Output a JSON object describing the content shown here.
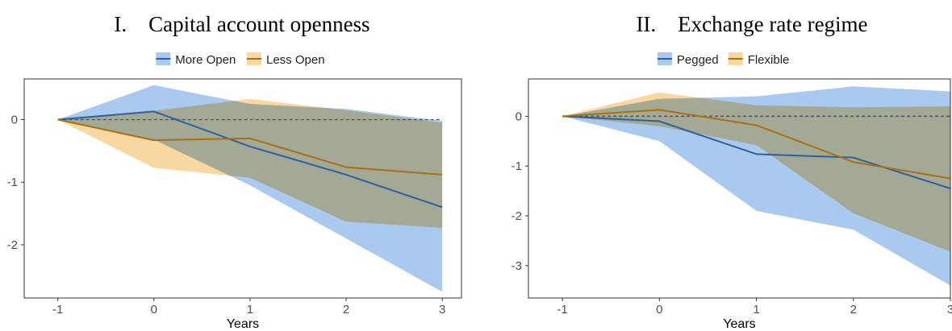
{
  "chart_data": [
    {
      "type": "line",
      "title": "I. Capital account openness",
      "xlabel": "Years",
      "ylabel": "",
      "x": [
        -1,
        0,
        1,
        2,
        3
      ],
      "xlim": [
        -1.35,
        3.2
      ],
      "ylim": [
        -2.85,
        0.65
      ],
      "xticks": [
        "-1",
        "0",
        "1",
        "2",
        "3"
      ],
      "yticks": [
        0,
        -1,
        -2
      ],
      "ytick_labels": [
        "0",
        "-1",
        "-2"
      ],
      "reference_line": 0,
      "grid": false,
      "legend_position": "top-center",
      "series": [
        {
          "name": "More Open",
          "color": "#2e5f9e",
          "band_color": "#a9c9ee",
          "values": [
            0,
            0.13,
            -0.43,
            -0.88,
            -1.4
          ],
          "upper": [
            0,
            0.55,
            0.25,
            0.17,
            -0.02
          ],
          "lower": [
            0,
            -0.32,
            -1.05,
            -1.9,
            -2.75
          ]
        },
        {
          "name": "Less Open",
          "color": "#a86f15",
          "band_color": "#f8d7a0",
          "values": [
            0,
            -0.33,
            -0.3,
            -0.76,
            -0.88
          ],
          "upper": [
            0,
            0.14,
            0.33,
            0.15,
            -0.05
          ],
          "lower": [
            0,
            -0.77,
            -0.93,
            -1.63,
            -1.73
          ]
        }
      ]
    },
    {
      "type": "line",
      "title": "II. Exchange rate regime",
      "xlabel": "Years",
      "ylabel": "",
      "x": [
        -1,
        0,
        1,
        2,
        3
      ],
      "xlim": [
        -1.35,
        3.0
      ],
      "ylim": [
        -3.65,
        0.75
      ],
      "xticks": [
        "-1",
        "0",
        "1",
        "2",
        "3"
      ],
      "yticks": [
        0,
        -1,
        -2,
        -3
      ],
      "ytick_labels": [
        "0",
        "-1",
        "-2",
        "-3"
      ],
      "reference_line": 0,
      "grid": false,
      "legend_position": "top-center",
      "series": [
        {
          "name": "Pegged",
          "color": "#2e5f9e",
          "band_color": "#a9c9ee",
          "values": [
            0,
            -0.1,
            -0.76,
            -0.83,
            -1.45
          ],
          "upper": [
            0,
            0.35,
            0.4,
            0.6,
            0.5
          ],
          "lower": [
            0,
            -0.5,
            -1.9,
            -2.28,
            -3.4
          ]
        },
        {
          "name": "Flexible",
          "color": "#a86f15",
          "band_color": "#f8d7a0",
          "values": [
            0,
            0.13,
            -0.18,
            -0.92,
            -1.25
          ],
          "upper": [
            0,
            0.48,
            0.22,
            0.18,
            0.2
          ],
          "lower": [
            0,
            -0.2,
            -0.58,
            -1.95,
            -2.72
          ]
        }
      ]
    }
  ]
}
